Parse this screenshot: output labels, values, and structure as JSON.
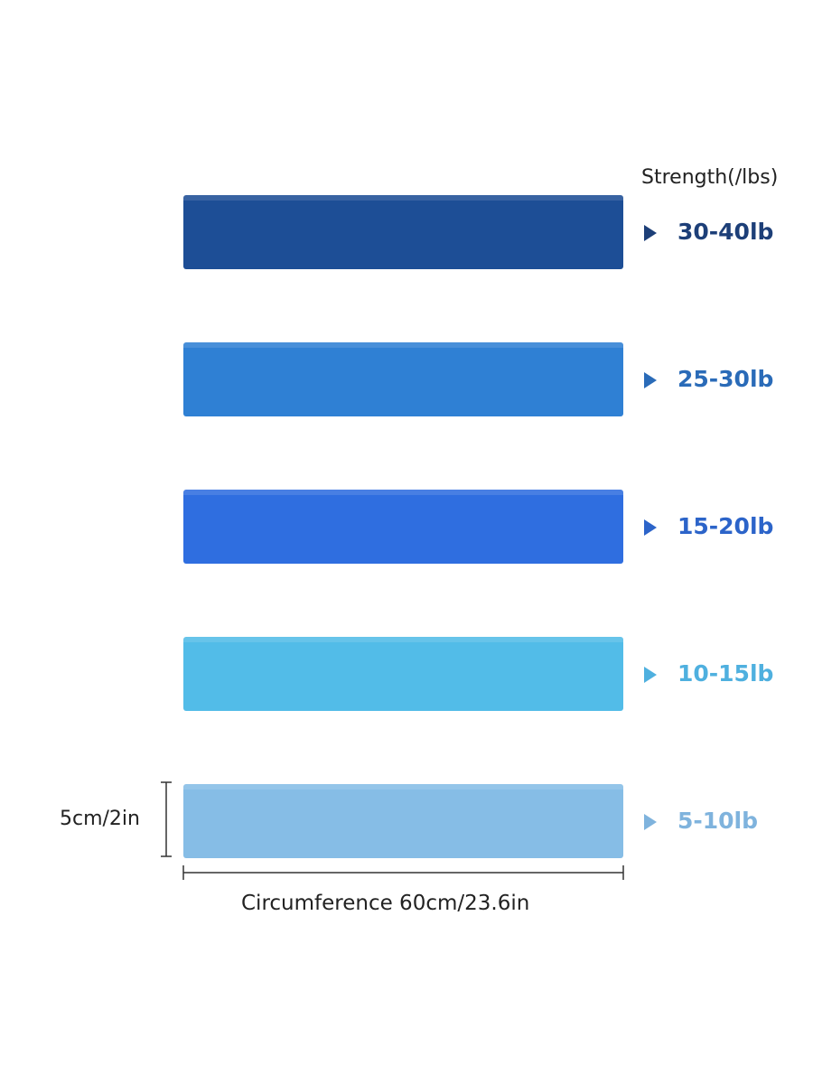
{
  "header": {
    "title": "Strength(/lbs)"
  },
  "bands": [
    {
      "label": "30-40lb",
      "color": "#1d4e96",
      "text_color": "#1d3f78"
    },
    {
      "label": "25-30lb",
      "color": "#2f80d4",
      "text_color": "#2a6bb8"
    },
    {
      "label": "15-20lb",
      "color": "#2f6ee0",
      "text_color": "#2c64c9"
    },
    {
      "label": "10-15lb",
      "color": "#52bce8",
      "text_color": "#4fb0df"
    },
    {
      "label": "5-10lb",
      "color": "#86bde6",
      "text_color": "#7fb3dd"
    }
  ],
  "dimensions": {
    "height": "5cm/2in",
    "circumference": "Circumference 60cm/23.6in"
  }
}
